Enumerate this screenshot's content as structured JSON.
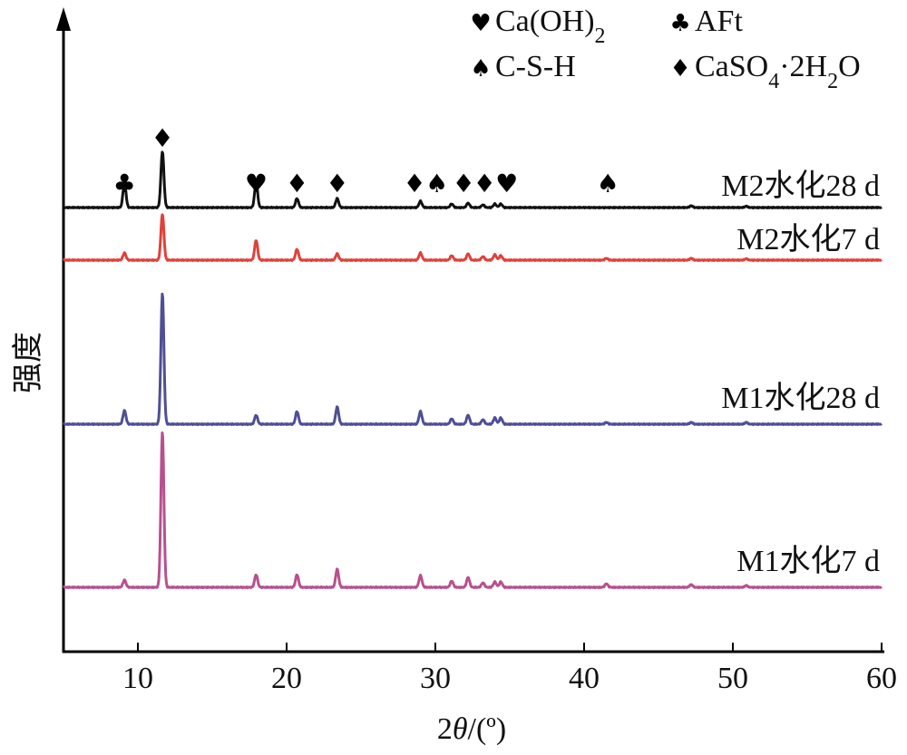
{
  "chart_data": {
    "type": "line",
    "xlabel": "2θ/(º)",
    "ylabel": "强度",
    "xlim": [
      5,
      60
    ],
    "x_ticks": [
      10,
      20,
      30,
      40,
      50,
      60
    ],
    "grid": false,
    "legend": [
      {
        "symbol": "♥",
        "label_html": "Ca(OH)<tspan baseline-shift='sub' font-size='24'>2</tspan>",
        "phase": "Ca(OH)2"
      },
      {
        "symbol": "♣",
        "label": "AFt",
        "phase": "AFt"
      },
      {
        "symbol": "♠",
        "label": "C-S-H",
        "phase": "C-S-H"
      },
      {
        "symbol": "♦",
        "label": "CaSO4·2H2O",
        "phase": "CaSO4·2H2O"
      }
    ],
    "legend_position": "top-right",
    "series": [
      {
        "name": "M2水化28 d",
        "color": "#111111",
        "peaks": [
          [
            9.1,
            28
          ],
          [
            11.65,
            62
          ],
          [
            17.95,
            28
          ],
          [
            20.7,
            10
          ],
          [
            23.4,
            10
          ],
          [
            29.0,
            7
          ],
          [
            31.1,
            4
          ],
          [
            32.2,
            5
          ],
          [
            33.2,
            3
          ],
          [
            34.0,
            4
          ],
          [
            34.4,
            4
          ],
          [
            47.2,
            2
          ],
          [
            50.9,
            1.5
          ]
        ]
      },
      {
        "name": "M2水化7 d",
        "color": "#e0413a",
        "peaks": [
          [
            9.1,
            8
          ],
          [
            11.65,
            51
          ],
          [
            17.95,
            22
          ],
          [
            20.7,
            12
          ],
          [
            23.4,
            7
          ],
          [
            29.0,
            8
          ],
          [
            31.1,
            5
          ],
          [
            32.2,
            7
          ],
          [
            33.2,
            4
          ],
          [
            34.0,
            6
          ],
          [
            34.4,
            5
          ],
          [
            41.5,
            2
          ],
          [
            47.2,
            2
          ],
          [
            50.9,
            1.5
          ]
        ]
      },
      {
        "name": "M1水化28 d",
        "color": "#4e4f96",
        "peaks": [
          [
            9.1,
            15
          ],
          [
            11.65,
            145
          ],
          [
            17.95,
            10
          ],
          [
            20.7,
            14
          ],
          [
            23.4,
            19
          ],
          [
            29.0,
            14
          ],
          [
            31.1,
            6
          ],
          [
            32.2,
            10
          ],
          [
            33.2,
            5
          ],
          [
            34.0,
            7
          ],
          [
            34.4,
            7
          ],
          [
            41.5,
            2
          ],
          [
            47.2,
            2
          ],
          [
            50.9,
            2
          ]
        ]
      },
      {
        "name": "M1水化7 d",
        "color": "#b8508f",
        "peaks": [
          [
            9.1,
            8
          ],
          [
            11.65,
            172
          ],
          [
            17.95,
            14
          ],
          [
            20.7,
            14
          ],
          [
            23.4,
            20
          ],
          [
            29.0,
            13
          ],
          [
            31.1,
            7
          ],
          [
            32.2,
            11
          ],
          [
            33.2,
            5
          ],
          [
            34.0,
            6
          ],
          [
            34.4,
            6
          ],
          [
            41.5,
            4
          ],
          [
            47.2,
            3
          ],
          [
            50.9,
            2
          ]
        ]
      }
    ],
    "phase_markers": [
      {
        "x": 9.1,
        "symbol": "♣"
      },
      {
        "x": 11.65,
        "symbol": "♦"
      },
      {
        "x": 17.95,
        "symbol": "♥"
      },
      {
        "x": 20.7,
        "symbol": "♦"
      },
      {
        "x": 23.4,
        "symbol": "♦"
      },
      {
        "x": 28.6,
        "symbol": "♦"
      },
      {
        "x": 30.1,
        "symbol": "♠"
      },
      {
        "x": 31.9,
        "symbol": "♦"
      },
      {
        "x": 33.3,
        "symbol": "♦"
      },
      {
        "x": 34.8,
        "symbol": "♥"
      },
      {
        "x": 41.6,
        "symbol": "♠"
      }
    ]
  }
}
